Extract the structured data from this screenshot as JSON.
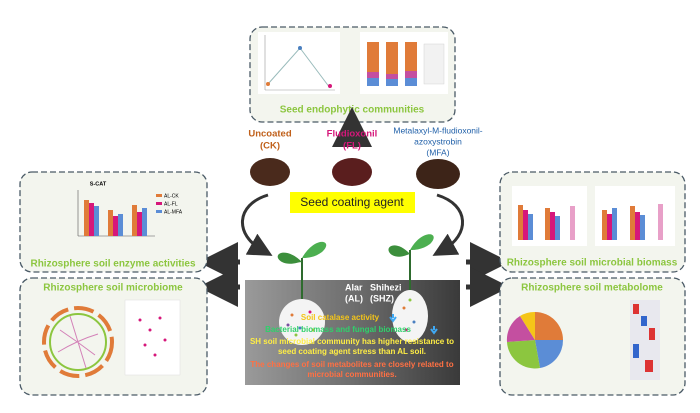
{
  "top_panel": {
    "label": "Seed endophytic communities"
  },
  "treatments": [
    {
      "lines": [
        "Uncoated",
        "(CK)"
      ]
    },
    {
      "lines": [
        "Fludioxonil",
        "(FL)"
      ]
    },
    {
      "lines": [
        "Metalaxyl-M-fludioxonil-",
        "azoxystrobin",
        "(MFA)"
      ]
    }
  ],
  "center_label": "Seed coating agent",
  "left_panels": [
    {
      "label": "Rhizosphere soil enzyme activities",
      "chart_title": "S-CAT",
      "legend": [
        "AL-CK",
        "AL-FL",
        "AL-MFA"
      ]
    },
    {
      "label": "Rhizosphere soil microbiome"
    }
  ],
  "right_panels": [
    {
      "label": "Rhizosphere soil microbial biomass"
    },
    {
      "label": "Rhizosphere soil metabolome"
    }
  ],
  "sites": [
    {
      "lines": [
        "Alar",
        "(AL)"
      ]
    },
    {
      "lines": [
        "Shihezi",
        "(SHZ)"
      ]
    }
  ],
  "findings": [
    {
      "lines": [
        "Soil catalase activity"
      ]
    },
    {
      "lines": [
        "Bacterial biomass and fungal biomass"
      ]
    },
    {
      "lines": [
        "SH soil microbial community has higher resistance to",
        "seed coating agent stress than AL soil."
      ]
    },
    {
      "lines": [
        "The changes of soil metabolites are closely related to",
        "microbial communities."
      ]
    }
  ]
}
